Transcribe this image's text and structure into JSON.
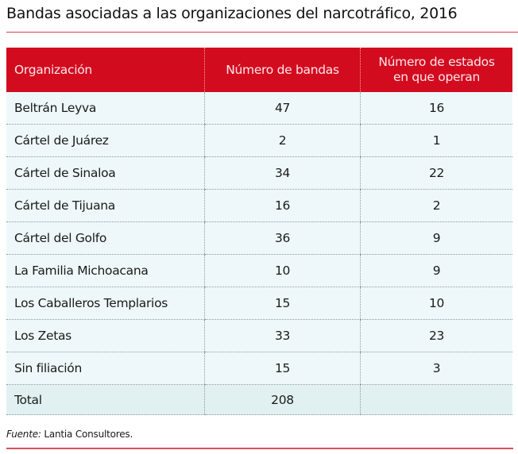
{
  "title": "Bandas asociadas a las organizaciones del narcotráfico, 2016",
  "table": {
    "headers": [
      "Organización",
      "Número de bandas",
      "Número de estados en que operan"
    ],
    "rows": [
      [
        "Beltrán Leyva",
        "47",
        "16"
      ],
      [
        "Cártel de Juárez",
        "2",
        "1"
      ],
      [
        "Cártel de Sinaloa",
        "34",
        "22"
      ],
      [
        "Cártel de Tijuana",
        "16",
        "2"
      ],
      [
        "Cártel del Golfo",
        "36",
        "9"
      ],
      [
        "La Familia Michoacana",
        "10",
        "9"
      ],
      [
        "Los Caballeros Templarios",
        "15",
        "10"
      ],
      [
        "Los Zetas",
        "33",
        "23"
      ],
      [
        "Sin filiación",
        "15",
        "3"
      ]
    ],
    "total": [
      "Total",
      "208",
      ""
    ]
  },
  "source": {
    "label": "Fuente:",
    "text": " Lantia Consultores."
  },
  "colors": {
    "header_bg": "#d30b1f",
    "row_bg": "#eef8fa",
    "accent_rule": "#d8404c"
  }
}
